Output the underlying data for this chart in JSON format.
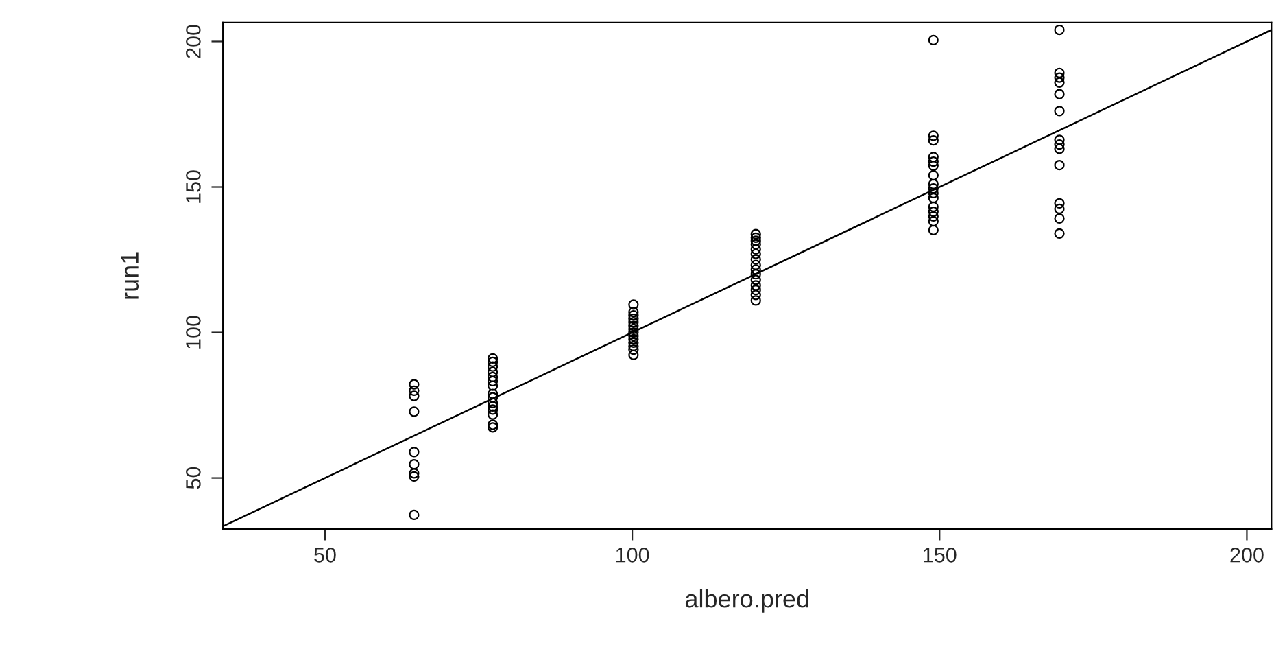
{
  "chart_data": {
    "type": "scatter",
    "xlabel": "albero.pred",
    "ylabel": "run1",
    "xlim": [
      33.4,
      204
    ],
    "ylim": [
      32.5,
      206.5
    ],
    "xticks": [
      50,
      100,
      150,
      200
    ],
    "yticks": [
      50,
      100,
      150,
      200
    ],
    "grid": false,
    "legend": false,
    "series": [
      {
        "color": "#000000",
        "marker": "circle",
        "x": [
          64.5,
          64.5,
          64.5,
          64.5,
          64.5,
          64.5,
          64.5,
          64.5,
          64.5,
          77.3,
          77.3,
          77.3,
          77.3,
          77.3,
          77.3,
          77.3,
          77.3,
          77.3,
          77.3,
          77.3,
          77.3,
          77.3,
          77.3,
          77.3,
          100.2,
          100.2,
          100.2,
          100.2,
          100.2,
          100.2,
          100.2,
          100.2,
          100.2,
          100.2,
          100.2,
          100.2,
          100.2,
          100.2,
          120.1,
          120.1,
          120.1,
          120.1,
          120.1,
          120.1,
          120.1,
          120.1,
          120.1,
          120.1,
          120.1,
          120.1,
          120.1,
          120.1,
          120.1,
          149,
          149,
          149,
          149,
          149,
          149,
          149,
          149,
          149,
          149,
          149,
          149,
          149,
          149,
          149,
          149,
          169.5,
          169.5,
          169.5,
          169.5,
          169.5,
          169.5,
          169.5,
          169.5,
          169.5,
          169.5,
          169.5,
          169.5,
          169.5,
          169.5
        ],
        "values": [
          82.2,
          80.0,
          78.2,
          72.8,
          58.9,
          54.7,
          51.6,
          50.5,
          37.3,
          91.1,
          89.9,
          88.3,
          86.4,
          84.7,
          83.3,
          81.7,
          78.9,
          77.7,
          75.8,
          74.6,
          73.5,
          71.8,
          68.3,
          67.4,
          109.6,
          107.0,
          105.9,
          104.7,
          103.5,
          102.3,
          101.2,
          100.0,
          98.8,
          97.7,
          96.5,
          95.3,
          94.1,
          92.3,
          133.8,
          132.6,
          131.5,
          130.3,
          128.6,
          127.0,
          125.1,
          123.2,
          121.6,
          120.0,
          118.1,
          116.2,
          114.6,
          112.9,
          111.0,
          200.5,
          167.6,
          166.0,
          160.3,
          158.7,
          157.3,
          154.0,
          151.0,
          149.5,
          147.9,
          146.2,
          143.2,
          141.5,
          139.9,
          138.2,
          135.2,
          204.0,
          189.2,
          187.6,
          185.9,
          181.9,
          176.1,
          166.2,
          164.6,
          163.1,
          157.5,
          144.4,
          142.5,
          139.2,
          134.0
        ]
      },
      {
        "type": "line",
        "color": "#000000",
        "line_style": "solid",
        "x": [
          33.4,
          204
        ],
        "values": [
          33.4,
          204
        ]
      }
    ]
  }
}
